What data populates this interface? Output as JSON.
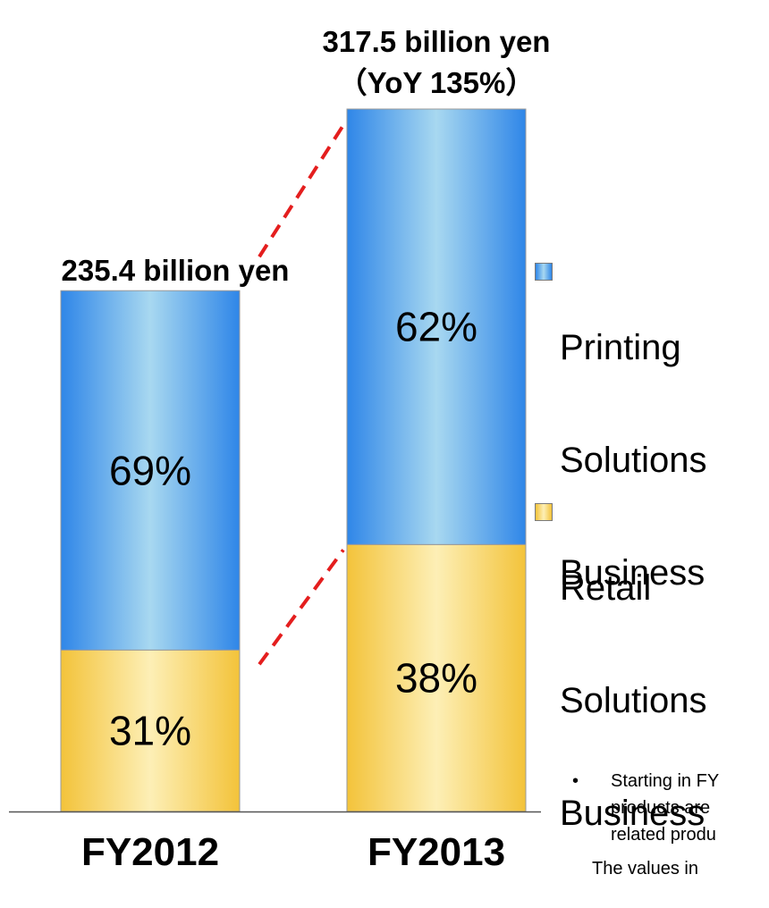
{
  "chart_data": {
    "type": "bar",
    "stacked": true,
    "percent_stacked": true,
    "categories": [
      "FY2012",
      "FY2013"
    ],
    "totals": [
      "235.4 billion yen",
      "317.5 billion yen"
    ],
    "total_notes": [
      "",
      "（YoY 135%）"
    ],
    "series": [
      {
        "name": "Retail Solutions Business",
        "values": [
          31,
          38
        ],
        "labels": [
          "31%",
          "38%"
        ],
        "color": "#F5C842"
      },
      {
        "name": "Printing Solutions Business",
        "values": [
          69,
          62
        ],
        "labels": [
          "69%",
          "62%"
        ],
        "color": "#3A8FE6"
      }
    ],
    "ylim": [
      0,
      100
    ],
    "grid": false,
    "legend_position": "right",
    "connector_color": "#E41E1E"
  },
  "legend": [
    {
      "lines": [
        "Printing",
        "Solutions",
        "Business"
      ],
      "color": "#3A8FE6"
    },
    {
      "lines": [
        "Retail",
        "Solutions",
        "Business"
      ],
      "color": "#F5C842"
    }
  ],
  "footnote": {
    "bullet": "•",
    "lines": [
      "Starting in FY",
      "products are",
      "related produ"
    ],
    "note2": "The values in"
  }
}
